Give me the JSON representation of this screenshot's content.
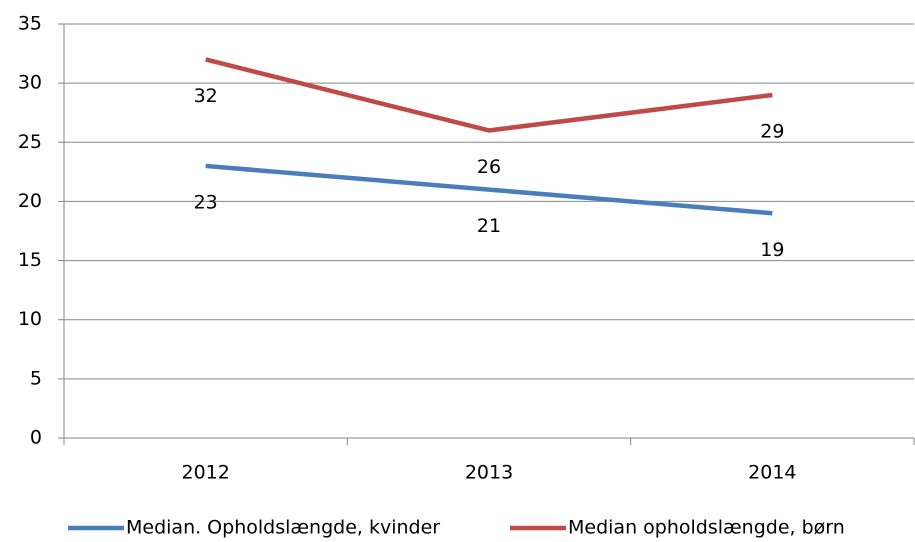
{
  "chart_data": {
    "type": "line",
    "categories": [
      "2012",
      "2013",
      "2014"
    ],
    "series": [
      {
        "name": "Median. Opholdslængde, kvinder",
        "color": "#4a7ebb",
        "values": [
          23,
          21,
          19
        ]
      },
      {
        "name": "Median opholdslængde, børn",
        "color": "#be4b48",
        "values": [
          32,
          26,
          29
        ]
      }
    ],
    "ylim": [
      0,
      35
    ],
    "yticks": [
      0,
      5,
      10,
      15,
      20,
      25,
      30,
      35
    ],
    "grid": true,
    "legend": "bottom"
  }
}
